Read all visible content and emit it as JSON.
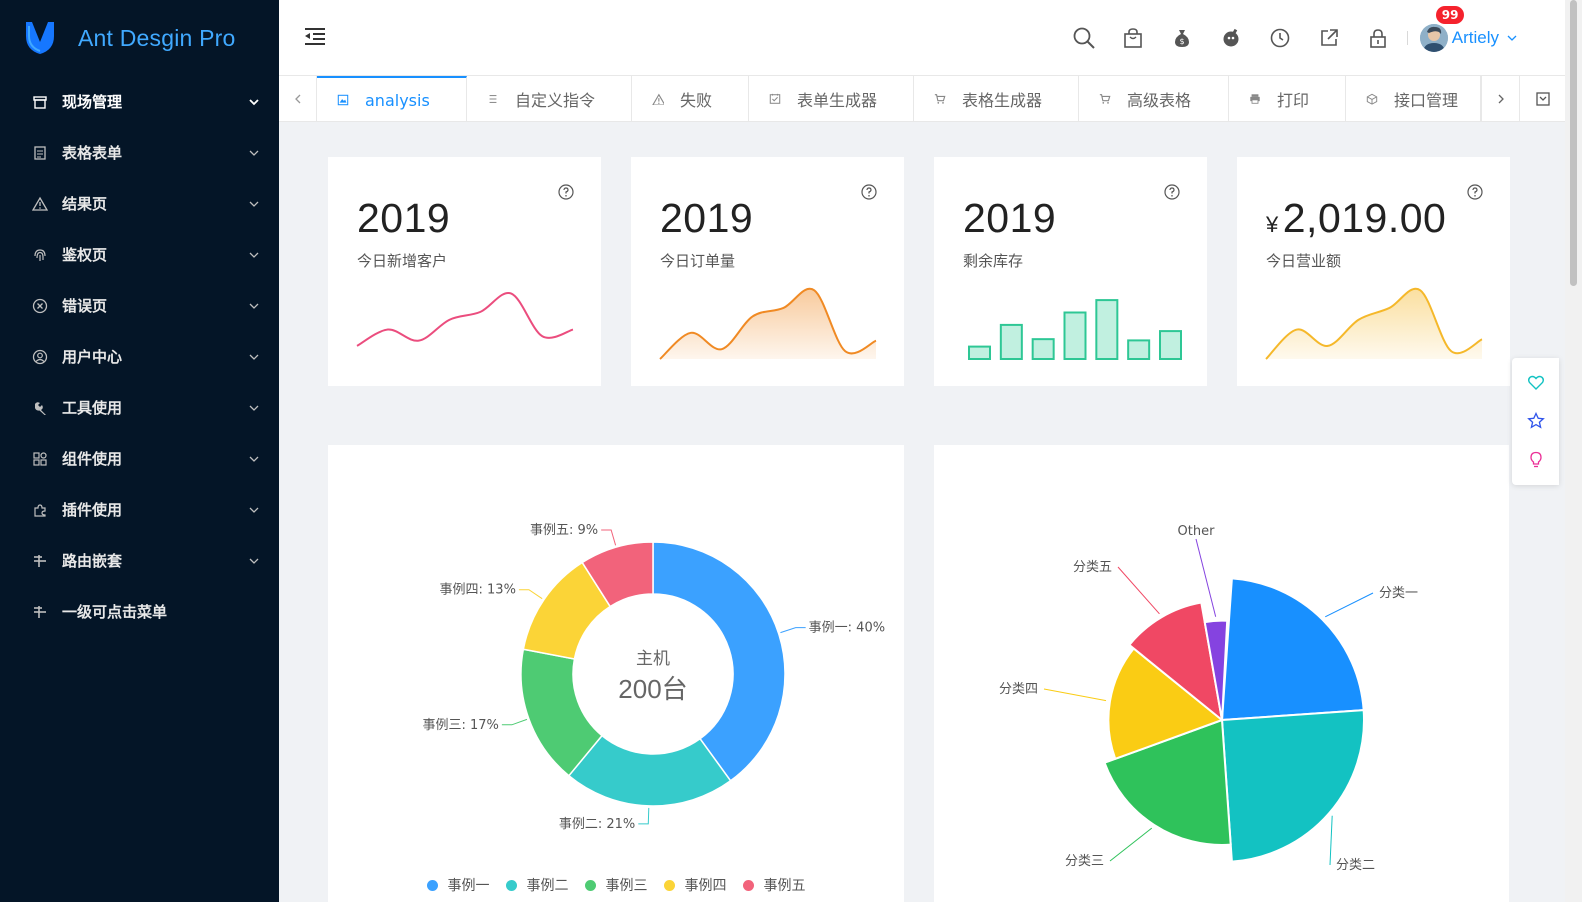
{
  "app": {
    "title": "Ant Desgin Pro"
  },
  "sidebar": {
    "items": [
      {
        "label": "现场管理",
        "icon": "store-icon",
        "active": true
      },
      {
        "label": "表格表单",
        "icon": "form-icon"
      },
      {
        "label": "结果页",
        "icon": "warning-icon"
      },
      {
        "label": "鉴权页",
        "icon": "fingerprint-icon"
      },
      {
        "label": "错误页",
        "icon": "close-circle-icon"
      },
      {
        "label": "用户中心",
        "icon": "user-circle-icon"
      },
      {
        "label": "工具使用",
        "icon": "tool-icon"
      },
      {
        "label": "组件使用",
        "icon": "appstore-icon"
      },
      {
        "label": "插件使用",
        "icon": "plugin-icon"
      },
      {
        "label": "路由嵌套",
        "icon": "route-icon"
      },
      {
        "label": "一级可点击菜单",
        "icon": "route-icon"
      }
    ]
  },
  "header": {
    "icons": [
      "search-icon",
      "shopping-bag-icon",
      "money-bag-icon",
      "bomb-icon",
      "clock-icon",
      "external-link-icon",
      "lock-icon"
    ],
    "user": {
      "name": "Artiely",
      "badge": "99"
    }
  },
  "tabs": [
    {
      "label": "analysis",
      "icon": "picture-icon",
      "active": true
    },
    {
      "label": "自定义指令",
      "icon": "list-icon"
    },
    {
      "label": "失败",
      "icon": "warning-icon"
    },
    {
      "label": "表单生成器",
      "icon": "checkbox-icon"
    },
    {
      "label": "表格生成器",
      "icon": "cart-icon"
    },
    {
      "label": "高级表格",
      "icon": "cart-icon"
    },
    {
      "label": "打印",
      "icon": "printer-icon"
    },
    {
      "label": "接口管理",
      "icon": "cube-icon"
    }
  ],
  "stats": [
    {
      "value": "2019",
      "label": "今日新增客户",
      "color": "#eb4d7e"
    },
    {
      "value": "2019",
      "label": "今日订单量",
      "color": "#f08a24"
    },
    {
      "value": "2019",
      "label": "剩余库存",
      "color": "#2ec795"
    },
    {
      "currency": "¥",
      "value": "2,019.00",
      "label": "今日营业额",
      "color": "#f5b82a"
    }
  ],
  "chart_data": [
    {
      "type": "line",
      "title": "今日新增客户",
      "values": [
        20,
        45,
        28,
        60,
        72,
        100,
        35,
        45
      ],
      "color": "#eb4d7e"
    },
    {
      "type": "area",
      "title": "今日订单量",
      "values": [
        0,
        40,
        15,
        65,
        78,
        105,
        12,
        28
      ],
      "color": "#f08a24"
    },
    {
      "type": "bar",
      "title": "剩余库存",
      "values": [
        20,
        55,
        32,
        75,
        95,
        30,
        45
      ],
      "color": "#2ec795"
    },
    {
      "type": "area",
      "title": "今日营业额",
      "values": [
        0,
        45,
        20,
        60,
        78,
        105,
        12,
        30
      ],
      "color": "#f5b82a"
    },
    {
      "type": "pie",
      "subtype": "donut",
      "center_label": "主机",
      "center_value": "200台",
      "slices": [
        {
          "name": "事例一",
          "value": 40,
          "label": "事例一: 40%",
          "color": "#3ba1ff"
        },
        {
          "name": "事例二",
          "value": 21,
          "label": "事例二: 21%",
          "color": "#36cbcb"
        },
        {
          "name": "事例三",
          "value": 17,
          "label": "事例三: 17%",
          "color": "#4ecb73"
        },
        {
          "name": "事例四",
          "value": 13,
          "label": "事例四: 13%",
          "color": "#fbd437"
        },
        {
          "name": "事例五",
          "value": 9,
          "label": "事例五: 9%",
          "color": "#f2637b"
        }
      ],
      "legend": [
        "事例一",
        "事例二",
        "事例三",
        "事例四",
        "事例五"
      ]
    },
    {
      "type": "pie",
      "subtype": "rose",
      "slices": [
        {
          "name": "分类一",
          "value": 100,
          "color": "#1890ff"
        },
        {
          "name": "分类二",
          "value": 100,
          "color": "#13c2c2"
        },
        {
          "name": "分类三",
          "value": 88,
          "color": "#2fc25b"
        },
        {
          "name": "分类四",
          "value": 80,
          "color": "#facc14"
        },
        {
          "name": "分类五",
          "value": 84,
          "color": "#f04864"
        },
        {
          "name": "Other",
          "value": 70,
          "color": "#8543e0"
        }
      ]
    }
  ]
}
